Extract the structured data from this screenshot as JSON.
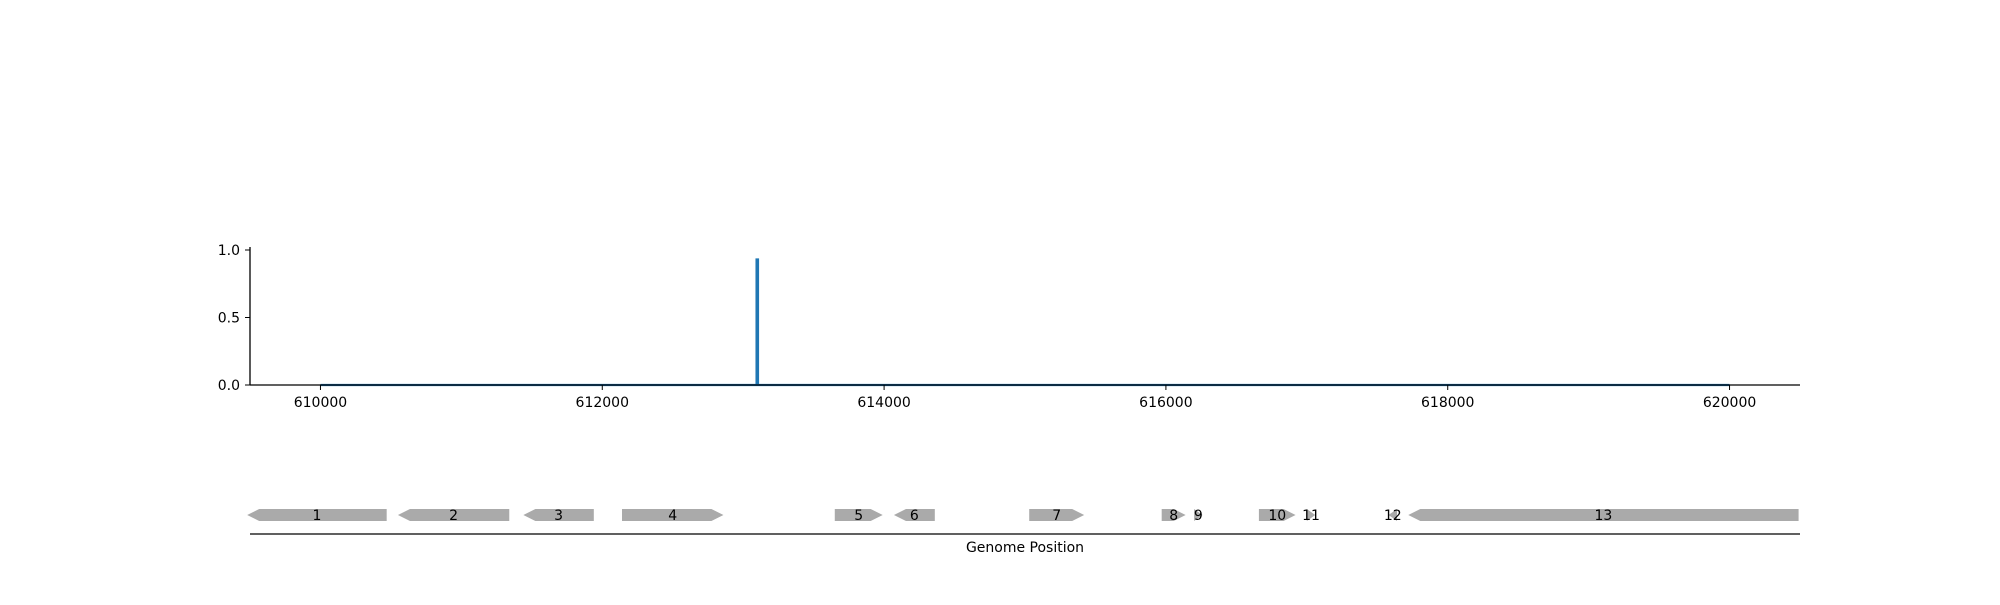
{
  "chart_data": [
    {
      "type": "line",
      "title": "",
      "xlabel": "",
      "ylabel": "",
      "xlim": [
        609500,
        620500
      ],
      "ylim": [
        0,
        1.0
      ],
      "x_ticks": [
        {
          "value": 610000,
          "label": "610000"
        },
        {
          "value": 612000,
          "label": "612000"
        },
        {
          "value": 614000,
          "label": "614000"
        },
        {
          "value": 616000,
          "label": "616000"
        },
        {
          "value": 618000,
          "label": "618000"
        },
        {
          "value": 620000,
          "label": "620000"
        }
      ],
      "y_ticks": [
        {
          "value": 0.0,
          "label": "0.0"
        },
        {
          "value": 0.5,
          "label": "0.5"
        },
        {
          "value": 1.0,
          "label": "1.0"
        }
      ],
      "grid": false,
      "series": [
        {
          "color": "#1f77b4",
          "x": [
            610000,
            613095,
            613095,
            613105,
            613105,
            620000
          ],
          "y": [
            0,
            0,
            0.93,
            0.93,
            0,
            0
          ]
        }
      ]
    },
    {
      "type": "gene-track",
      "xlabel": "Genome Position",
      "xlim": [
        609500,
        620500
      ],
      "gene_color": "#aaaaaa",
      "genes": [
        {
          "label": "1",
          "start": 609480,
          "end": 610470,
          "strand": "-"
        },
        {
          "label": "2",
          "start": 610550,
          "end": 611340,
          "strand": "-"
        },
        {
          "label": "3",
          "start": 611440,
          "end": 611940,
          "strand": "-"
        },
        {
          "label": "4",
          "start": 612140,
          "end": 612860,
          "strand": "+"
        },
        {
          "label": "5",
          "start": 613650,
          "end": 613990,
          "strand": "+"
        },
        {
          "label": "6",
          "start": 614070,
          "end": 614360,
          "strand": "-"
        },
        {
          "label": "7",
          "start": 615030,
          "end": 615420,
          "strand": "+"
        },
        {
          "label": "8",
          "start": 615970,
          "end": 616140,
          "strand": "+"
        },
        {
          "label": "9",
          "start": 616200,
          "end": 616260,
          "strand": "+"
        },
        {
          "label": "10",
          "start": 616660,
          "end": 616920,
          "strand": "+"
        },
        {
          "label": "11",
          "start": 617000,
          "end": 617060,
          "strand": "+"
        },
        {
          "label": "12",
          "start": 617580,
          "end": 617640,
          "strand": "-"
        },
        {
          "label": "13",
          "start": 617720,
          "end": 620490,
          "strand": "-"
        }
      ]
    }
  ]
}
